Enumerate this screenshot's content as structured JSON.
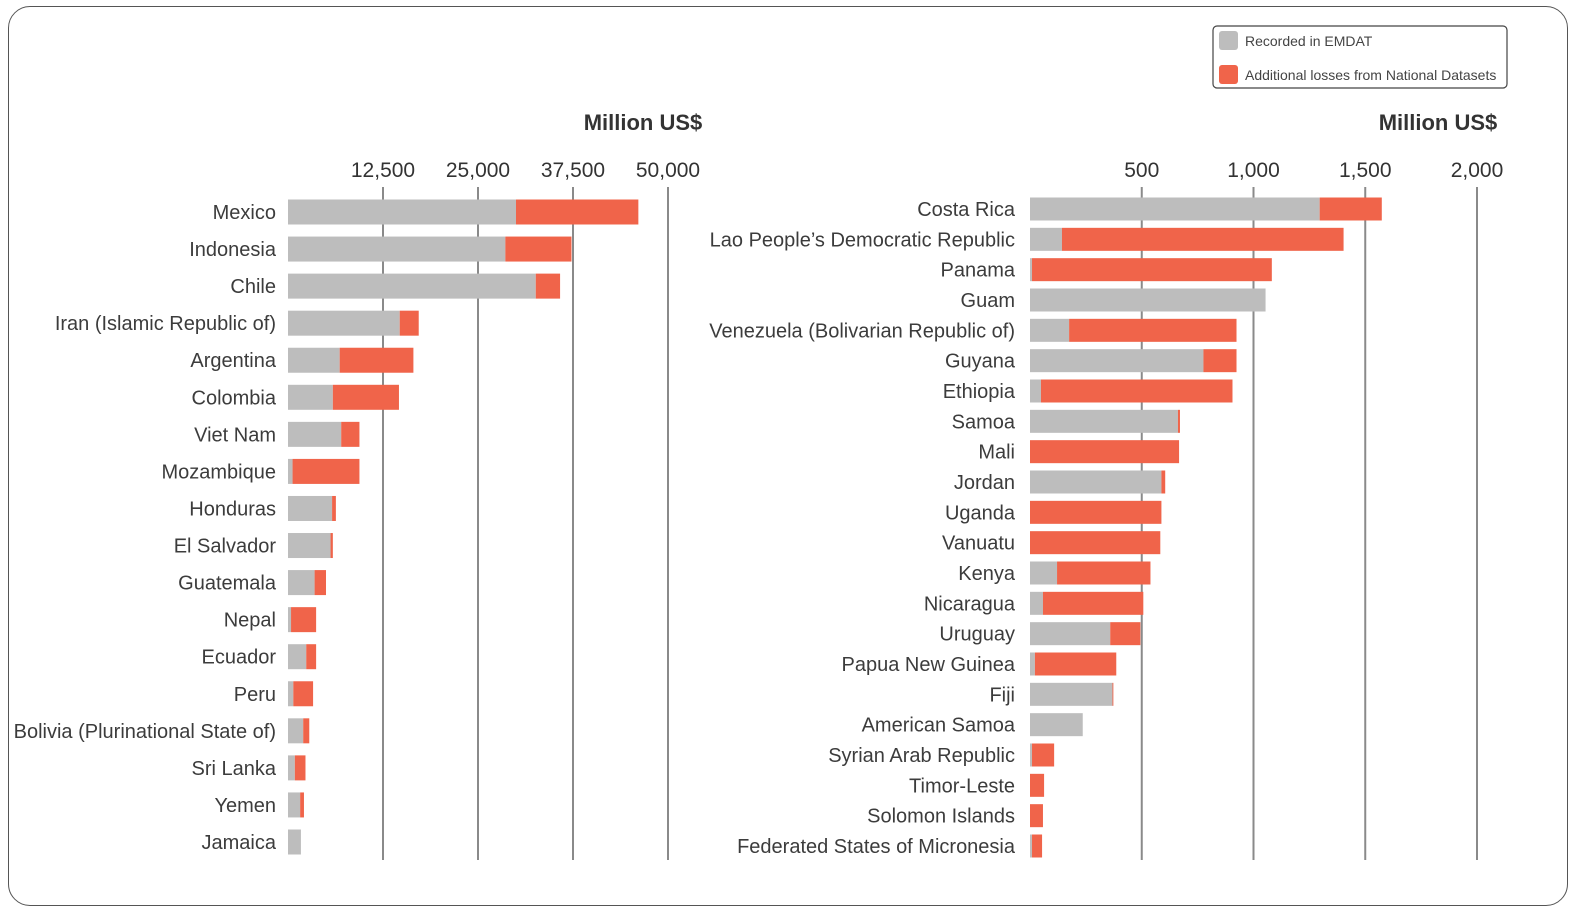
{
  "legend": [
    {
      "label": "Recorded in EMDAT",
      "color": "#bdbdbd"
    },
    {
      "label": "Additional losses from National Datasets",
      "color": "#f0644a"
    }
  ],
  "chart_data": [
    {
      "type": "bar",
      "orientation": "horizontal",
      "stacked": true,
      "xlabel": "Million US$",
      "xlim": [
        0,
        50000
      ],
      "xticks": [
        12500,
        25000,
        37500,
        50000
      ],
      "xtick_labels": [
        "12,500",
        "25,000",
        "37,500",
        "50,000"
      ],
      "categories": [
        "Mexico",
        "Indonesia",
        "Chile",
        "Iran (Islamic Republic of)",
        "Argentina",
        "Colombia",
        "Viet Nam",
        "Mozambique",
        "Honduras",
        "El Salvador",
        "Guatemala",
        "Nepal",
        "Ecuador",
        "Peru",
        "Bolivia (Plurinational State of)",
        "Sri Lanka",
        "Yemen",
        "Jamaica"
      ],
      "series": [
        {
          "name": "Recorded in EMDAT",
          "color": "#bdbdbd",
          "values": [
            30000,
            28600,
            32600,
            14700,
            6800,
            5900,
            7000,
            600,
            5800,
            5600,
            3500,
            400,
            2400,
            700,
            2000,
            900,
            1600,
            1700
          ]
        },
        {
          "name": "Additional losses from National Datasets",
          "color": "#f0644a",
          "values": [
            16100,
            8700,
            3200,
            2500,
            9700,
            8700,
            2400,
            8800,
            500,
            300,
            1500,
            3300,
            1300,
            2600,
            800,
            1400,
            500,
            0
          ]
        }
      ]
    },
    {
      "type": "bar",
      "orientation": "horizontal",
      "stacked": true,
      "xlabel": "Million US$",
      "xlim": [
        0,
        2000
      ],
      "xticks": [
        500,
        1000,
        1500,
        2000
      ],
      "xtick_labels": [
        "500",
        "1,000",
        "1,500",
        "2,000"
      ],
      "categories": [
        "Costa Rica",
        "Lao People’s Democratic Republic",
        "Panama",
        "Guam",
        "Venezuela (Bolivarian Republic of)",
        "Guyana",
        "Ethiopia",
        "Samoa",
        "Mali",
        "Jordan",
        "Uganda",
        "Vanuatu",
        "Kenya",
        "Nicaragua",
        "Uruguay",
        "Papua New Guinea",
        "Fiji",
        "American Samoa",
        "Syrian Arab Republic",
        "Timor-Leste",
        "Solomon Islands",
        "Federated States of Micronesia"
      ],
      "series": [
        {
          "name": "Recorded in EMDAT",
          "color": "#bdbdbd",
          "values": [
            1296,
            143,
            9,
            1054,
            175,
            776,
            49,
            662,
            0,
            588,
            0,
            0,
            121,
            58,
            359,
            22,
            369,
            236,
            9,
            0,
            0,
            9
          ]
        },
        {
          "name": "Additional losses from National Datasets",
          "color": "#f0644a",
          "values": [
            278,
            1260,
            1073,
            0,
            749,
            148,
            857,
            9,
            667,
            17,
            588,
            583,
            418,
            449,
            135,
            364,
            4,
            0,
            99,
            63,
            58,
            45
          ]
        }
      ]
    }
  ]
}
